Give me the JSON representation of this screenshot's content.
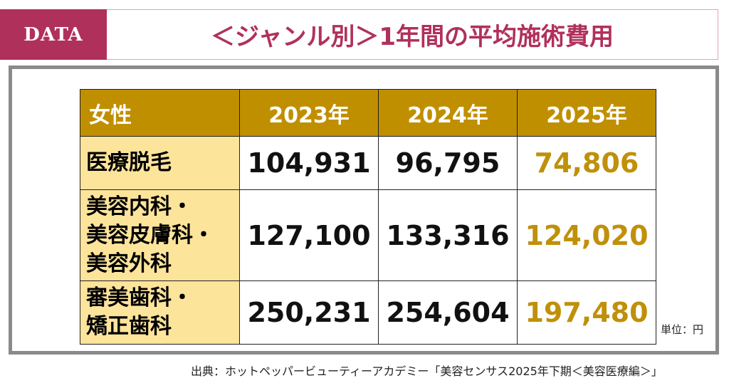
{
  "header": {
    "badge": "DATA",
    "title": "＜ジャンル別＞1年間の平均施術費用"
  },
  "table": {
    "columns": [
      "女性",
      "2023年",
      "2024年",
      "2025年"
    ],
    "rows": [
      {
        "label": "医療脱毛",
        "values": [
          "104,931",
          "96,795",
          "74,806"
        ]
      },
      {
        "label": "美容内科・美容皮膚科・美容外科",
        "label_lines": [
          "美容内科・",
          "美容皮膚科・",
          "美容外科"
        ],
        "values": [
          "127,100",
          "133,316",
          "124,020"
        ]
      },
      {
        "label": "審美歯科・矯正歯科",
        "label_lines": [
          "審美歯科・",
          "矯正歯科"
        ],
        "values": [
          "250,231",
          "254,604",
          "197,480"
        ]
      }
    ]
  },
  "unit": "単位：円",
  "source": "出典：ホットペッパービューティーアカデミー「美容センサス2025年下期＜美容医療編＞」",
  "colors": {
    "accent": "#b0305c",
    "header_bg": "#c08f00",
    "label_bg": "#fde49b",
    "highlight": "#c0900a"
  }
}
